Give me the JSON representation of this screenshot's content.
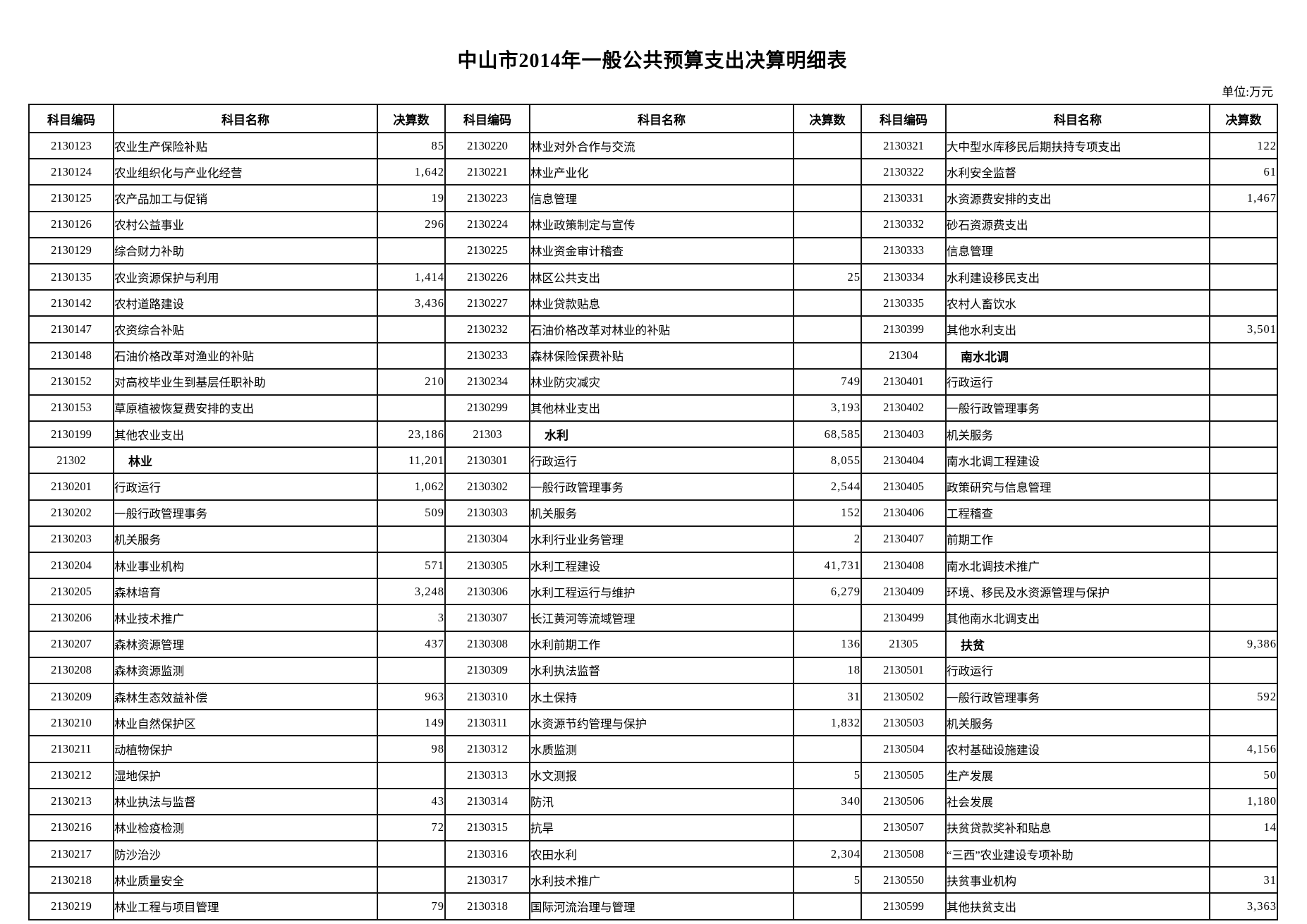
{
  "page": {
    "title": "中山市2014年一般公共预算支出决算明细表",
    "unit_label": "单位:万元"
  },
  "table": {
    "column_headers": [
      "科目编码",
      "科目名称",
      "决算数"
    ],
    "groups": [
      {
        "rows": [
          {
            "code": "2130123",
            "name": "农业生产保险补贴",
            "value": "85",
            "section": false
          },
          {
            "code": "2130124",
            "name": "农业组织化与产业化经营",
            "value": "1,642",
            "section": false
          },
          {
            "code": "2130125",
            "name": "农产品加工与促销",
            "value": "19",
            "section": false
          },
          {
            "code": "2130126",
            "name": "农村公益事业",
            "value": "296",
            "section": false
          },
          {
            "code": "2130129",
            "name": "综合财力补助",
            "value": "",
            "section": false
          },
          {
            "code": "2130135",
            "name": "农业资源保护与利用",
            "value": "1,414",
            "section": false
          },
          {
            "code": "2130142",
            "name": "农村道路建设",
            "value": "3,436",
            "section": false
          },
          {
            "code": "2130147",
            "name": "农资综合补贴",
            "value": "",
            "section": false
          },
          {
            "code": "2130148",
            "name": "石油价格改革对渔业的补贴",
            "value": "",
            "section": false
          },
          {
            "code": "2130152",
            "name": "对高校毕业生到基层任职补助",
            "value": "210",
            "section": false
          },
          {
            "code": "2130153",
            "name": "草原植被恢复费安排的支出",
            "value": "",
            "section": false
          },
          {
            "code": "2130199",
            "name": "其他农业支出",
            "value": "23,186",
            "section": false
          },
          {
            "code": "21302",
            "name": "林业",
            "value": "11,201",
            "section": true
          },
          {
            "code": "2130201",
            "name": "行政运行",
            "value": "1,062",
            "section": false
          },
          {
            "code": "2130202",
            "name": "一般行政管理事务",
            "value": "509",
            "section": false
          },
          {
            "code": "2130203",
            "name": "机关服务",
            "value": "",
            "section": false
          },
          {
            "code": "2130204",
            "name": "林业事业机构",
            "value": "571",
            "section": false
          },
          {
            "code": "2130205",
            "name": "森林培育",
            "value": "3,248",
            "section": false
          },
          {
            "code": "2130206",
            "name": "林业技术推广",
            "value": "3",
            "section": false
          },
          {
            "code": "2130207",
            "name": "森林资源管理",
            "value": "437",
            "section": false
          },
          {
            "code": "2130208",
            "name": "森林资源监测",
            "value": "",
            "section": false
          },
          {
            "code": "2130209",
            "name": "森林生态效益补偿",
            "value": "963",
            "section": false
          },
          {
            "code": "2130210",
            "name": "林业自然保护区",
            "value": "149",
            "section": false
          },
          {
            "code": "2130211",
            "name": "动植物保护",
            "value": "98",
            "section": false
          },
          {
            "code": "2130212",
            "name": "湿地保护",
            "value": "",
            "section": false
          },
          {
            "code": "2130213",
            "name": "林业执法与监督",
            "value": "43",
            "section": false
          },
          {
            "code": "2130216",
            "name": "林业检疫检测",
            "value": "72",
            "section": false
          },
          {
            "code": "2130217",
            "name": "防沙治沙",
            "value": "",
            "section": false
          },
          {
            "code": "2130218",
            "name": "林业质量安全",
            "value": "",
            "section": false
          },
          {
            "code": "2130219",
            "name": "林业工程与项目管理",
            "value": "79",
            "section": false
          }
        ]
      },
      {
        "rows": [
          {
            "code": "2130220",
            "name": "林业对外合作与交流",
            "value": "",
            "section": false
          },
          {
            "code": "2130221",
            "name": "林业产业化",
            "value": "",
            "section": false
          },
          {
            "code": "2130223",
            "name": "信息管理",
            "value": "",
            "section": false
          },
          {
            "code": "2130224",
            "name": "林业政策制定与宣传",
            "value": "",
            "section": false
          },
          {
            "code": "2130225",
            "name": "林业资金审计稽查",
            "value": "",
            "section": false
          },
          {
            "code": "2130226",
            "name": "林区公共支出",
            "value": "25",
            "section": false
          },
          {
            "code": "2130227",
            "name": "林业贷款贴息",
            "value": "",
            "section": false
          },
          {
            "code": "2130232",
            "name": "石油价格改革对林业的补贴",
            "value": "",
            "section": false
          },
          {
            "code": "2130233",
            "name": "森林保险保费补贴",
            "value": "",
            "section": false
          },
          {
            "code": "2130234",
            "name": "林业防灾减灾",
            "value": "749",
            "section": false
          },
          {
            "code": "2130299",
            "name": "其他林业支出",
            "value": "3,193",
            "section": false
          },
          {
            "code": "21303",
            "name": "水利",
            "value": "68,585",
            "section": true
          },
          {
            "code": "2130301",
            "name": "行政运行",
            "value": "8,055",
            "section": false
          },
          {
            "code": "2130302",
            "name": "一般行政管理事务",
            "value": "2,544",
            "section": false
          },
          {
            "code": "2130303",
            "name": "机关服务",
            "value": "152",
            "section": false
          },
          {
            "code": "2130304",
            "name": "水利行业业务管理",
            "value": "2",
            "section": false
          },
          {
            "code": "2130305",
            "name": "水利工程建设",
            "value": "41,731",
            "section": false
          },
          {
            "code": "2130306",
            "name": "水利工程运行与维护",
            "value": "6,279",
            "section": false
          },
          {
            "code": "2130307",
            "name": "长江黄河等流域管理",
            "value": "",
            "section": false
          },
          {
            "code": "2130308",
            "name": "水利前期工作",
            "value": "136",
            "section": false
          },
          {
            "code": "2130309",
            "name": "水利执法监督",
            "value": "18",
            "section": false
          },
          {
            "code": "2130310",
            "name": "水土保持",
            "value": "31",
            "section": false
          },
          {
            "code": "2130311",
            "name": "水资源节约管理与保护",
            "value": "1,832",
            "section": false
          },
          {
            "code": "2130312",
            "name": "水质监测",
            "value": "",
            "section": false
          },
          {
            "code": "2130313",
            "name": "水文测报",
            "value": "5",
            "section": false
          },
          {
            "code": "2130314",
            "name": "防汛",
            "value": "340",
            "section": false
          },
          {
            "code": "2130315",
            "name": "抗旱",
            "value": "",
            "section": false
          },
          {
            "code": "2130316",
            "name": "农田水利",
            "value": "2,304",
            "section": false
          },
          {
            "code": "2130317",
            "name": "水利技术推广",
            "value": "5",
            "section": false
          },
          {
            "code": "2130318",
            "name": "国际河流治理与管理",
            "value": "",
            "section": false
          }
        ]
      },
      {
        "rows": [
          {
            "code": "2130321",
            "name": "大中型水库移民后期扶持专项支出",
            "value": "122",
            "section": false
          },
          {
            "code": "2130322",
            "name": "水利安全监督",
            "value": "61",
            "section": false
          },
          {
            "code": "2130331",
            "name": "水资源费安排的支出",
            "value": "1,467",
            "section": false
          },
          {
            "code": "2130332",
            "name": "砂石资源费支出",
            "value": "",
            "section": false
          },
          {
            "code": "2130333",
            "name": "信息管理",
            "value": "",
            "section": false
          },
          {
            "code": "2130334",
            "name": "水利建设移民支出",
            "value": "",
            "section": false
          },
          {
            "code": "2130335",
            "name": "农村人畜饮水",
            "value": "",
            "section": false
          },
          {
            "code": "2130399",
            "name": "其他水利支出",
            "value": "3,501",
            "section": false
          },
          {
            "code": "21304",
            "name": "南水北调",
            "value": "",
            "section": true
          },
          {
            "code": "2130401",
            "name": "行政运行",
            "value": "",
            "section": false
          },
          {
            "code": "2130402",
            "name": "一般行政管理事务",
            "value": "",
            "section": false
          },
          {
            "code": "2130403",
            "name": "机关服务",
            "value": "",
            "section": false
          },
          {
            "code": "2130404",
            "name": "南水北调工程建设",
            "value": "",
            "section": false
          },
          {
            "code": "2130405",
            "name": "政策研究与信息管理",
            "value": "",
            "section": false
          },
          {
            "code": "2130406",
            "name": "工程稽查",
            "value": "",
            "section": false
          },
          {
            "code": "2130407",
            "name": "前期工作",
            "value": "",
            "section": false
          },
          {
            "code": "2130408",
            "name": "南水北调技术推广",
            "value": "",
            "section": false
          },
          {
            "code": "2130409",
            "name": "环境、移民及水资源管理与保护",
            "value": "",
            "section": false
          },
          {
            "code": "2130499",
            "name": "其他南水北调支出",
            "value": "",
            "section": false
          },
          {
            "code": "21305",
            "name": "扶贫",
            "value": "9,386",
            "section": true
          },
          {
            "code": "2130501",
            "name": "行政运行",
            "value": "",
            "section": false
          },
          {
            "code": "2130502",
            "name": "一般行政管理事务",
            "value": "592",
            "section": false
          },
          {
            "code": "2130503",
            "name": "机关服务",
            "value": "",
            "section": false
          },
          {
            "code": "2130504",
            "name": "农村基础设施建设",
            "value": "4,156",
            "section": false
          },
          {
            "code": "2130505",
            "name": "生产发展",
            "value": "50",
            "section": false
          },
          {
            "code": "2130506",
            "name": "社会发展",
            "value": "1,180",
            "section": false
          },
          {
            "code": "2130507",
            "name": "扶贫贷款奖补和贴息",
            "value": "14",
            "section": false
          },
          {
            "code": "2130508",
            "name": "“三西”农业建设专项补助",
            "value": "",
            "section": false
          },
          {
            "code": "2130550",
            "name": "扶贫事业机构",
            "value": "31",
            "section": false
          },
          {
            "code": "2130599",
            "name": "其他扶贫支出",
            "value": "3,363",
            "section": false
          }
        ]
      }
    ]
  }
}
